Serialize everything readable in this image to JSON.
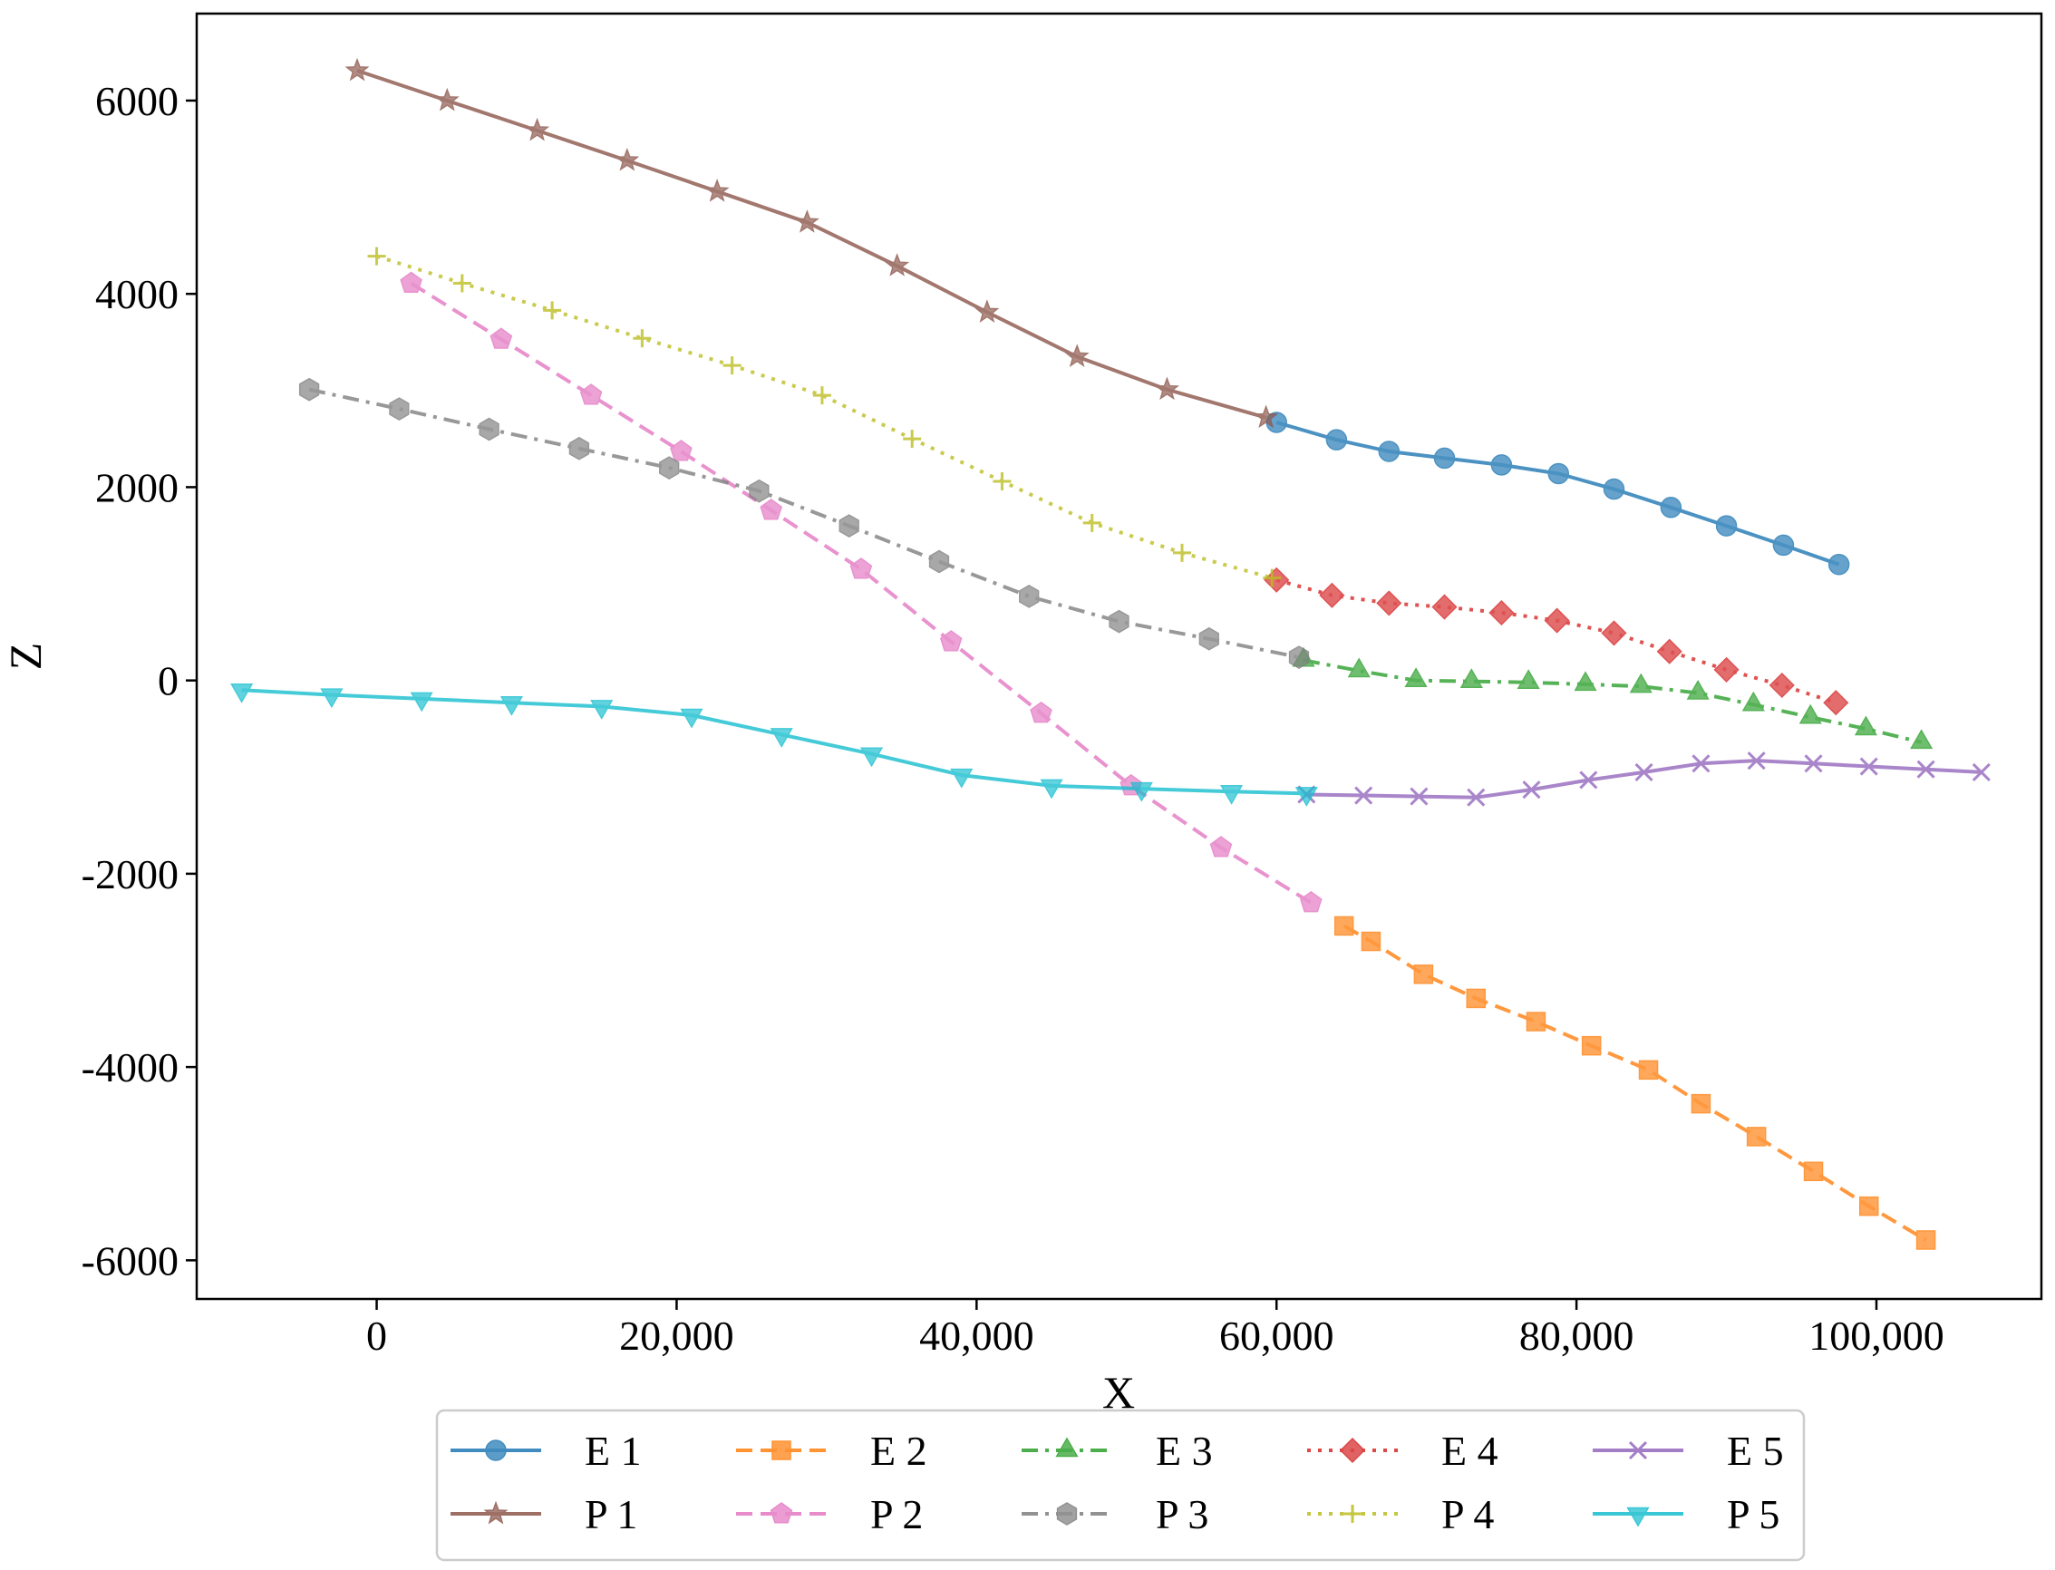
{
  "chart_data": {
    "type": "line",
    "title": "",
    "xlabel": "X",
    "ylabel": "Z",
    "xlim": [
      -12000,
      111000
    ],
    "ylim": [
      -6400,
      6900
    ],
    "xticks": [
      0,
      20000,
      40000,
      60000,
      80000,
      100000
    ],
    "xtick_labels": [
      "0",
      "20,000",
      "40,000",
      "60,000",
      "80,000",
      "100,000"
    ],
    "yticks": [
      -6000,
      -4000,
      -2000,
      0,
      2000,
      4000,
      6000
    ],
    "ytick_labels": [
      "-6000",
      "-4000",
      "-2000",
      "0",
      "2000",
      "4000",
      "6000"
    ],
    "grid": false,
    "legend_position": "bottom-center, outside plot, 5 columns",
    "series": [
      {
        "name": "E 1",
        "color": "#1f77b4",
        "linestyle": "solid",
        "marker": "circle",
        "x": [
          60000,
          64000,
          67500,
          71200,
          75000,
          78800,
          82500,
          86300,
          90000,
          93800,
          97500
        ],
        "y": [
          2670,
          2490,
          2370,
          2300,
          2230,
          2140,
          1980,
          1790,
          1600,
          1400,
          1200
        ]
      },
      {
        "name": "E 2",
        "color": "#ff7f0e",
        "linestyle": "dashed",
        "marker": "square",
        "x": [
          64500,
          66300,
          69800,
          73300,
          77300,
          81000,
          84800,
          88300,
          92000,
          95800,
          99500,
          103300
        ],
        "y": [
          -2540,
          -2700,
          -3040,
          -3290,
          -3530,
          -3780,
          -4030,
          -4380,
          -4720,
          -5080,
          -5440,
          -5790
        ]
      },
      {
        "name": "E 3",
        "color": "#2ca02c",
        "linestyle": "dashdot",
        "marker": "triangle-up",
        "x": [
          61800,
          65500,
          69300,
          73000,
          76800,
          80600,
          84300,
          88100,
          91800,
          95600,
          99300,
          103000
        ],
        "y": [
          210,
          100,
          0,
          -10,
          -20,
          -40,
          -60,
          -130,
          -250,
          -380,
          -500,
          -640
        ]
      },
      {
        "name": "E 4",
        "color": "#d62728",
        "linestyle": "dotted",
        "marker": "diamond",
        "x": [
          60000,
          63700,
          67500,
          71200,
          75000,
          78700,
          82500,
          86200,
          90000,
          93700,
          97300
        ],
        "y": [
          1040,
          880,
          800,
          760,
          700,
          620,
          490,
          300,
          110,
          -50,
          -230
        ]
      },
      {
        "name": "E 5",
        "color": "#9467bd",
        "linestyle": "solid",
        "marker": "x",
        "x": [
          62000,
          65800,
          69500,
          73300,
          77000,
          80800,
          84500,
          88300,
          92000,
          95800,
          99500,
          103300,
          107000
        ],
        "y": [
          -1180,
          -1190,
          -1200,
          -1210,
          -1130,
          -1030,
          -950,
          -860,
          -830,
          -860,
          -890,
          -920,
          -950
        ]
      },
      {
        "name": "P 1",
        "color": "#8c564b",
        "linestyle": "solid",
        "marker": "star",
        "x": [
          -1300,
          4700,
          10700,
          16700,
          22700,
          28700,
          34700,
          40700,
          46700,
          52700,
          59300
        ],
        "y": [
          6310,
          6000,
          5690,
          5380,
          5060,
          4740,
          4290,
          3810,
          3350,
          3010,
          2720
        ]
      },
      {
        "name": "P 2",
        "color": "#e377c2",
        "linestyle": "dashed",
        "marker": "pentagon",
        "x": [
          2300,
          8300,
          14300,
          20300,
          26300,
          32300,
          38300,
          44300,
          50300,
          56300,
          62300
        ],
        "y": [
          4110,
          3530,
          2950,
          2370,
          1760,
          1150,
          400,
          -340,
          -1090,
          -1730,
          -2300
        ]
      },
      {
        "name": "P 3",
        "color": "#7f7f7f",
        "linestyle": "dashdot",
        "marker": "hexagon",
        "x": [
          -4500,
          1500,
          7500,
          13500,
          19500,
          25500,
          31500,
          37500,
          43500,
          49500,
          55500,
          61500
        ],
        "y": [
          3010,
          2810,
          2600,
          2400,
          2200,
          1960,
          1600,
          1230,
          870,
          610,
          430,
          240
        ]
      },
      {
        "name": "P 4",
        "color": "#bcbd22",
        "linestyle": "dotted",
        "marker": "plus",
        "x": [
          0,
          5700,
          11700,
          17700,
          23700,
          29700,
          35700,
          41700,
          47700,
          53700,
          59700
        ],
        "y": [
          4390,
          4110,
          3830,
          3540,
          3260,
          2950,
          2500,
          2060,
          1630,
          1320,
          1060
        ]
      },
      {
        "name": "P 5",
        "color": "#17becf",
        "linestyle": "solid",
        "marker": "triangle-down",
        "x": [
          -9000,
          -3000,
          3000,
          9000,
          15000,
          21000,
          27000,
          33000,
          39000,
          45000,
          51000,
          57000,
          62000
        ],
        "y": [
          -100,
          -150,
          -190,
          -230,
          -270,
          -360,
          -560,
          -760,
          -980,
          -1090,
          -1120,
          -1150,
          -1170
        ]
      }
    ]
  }
}
